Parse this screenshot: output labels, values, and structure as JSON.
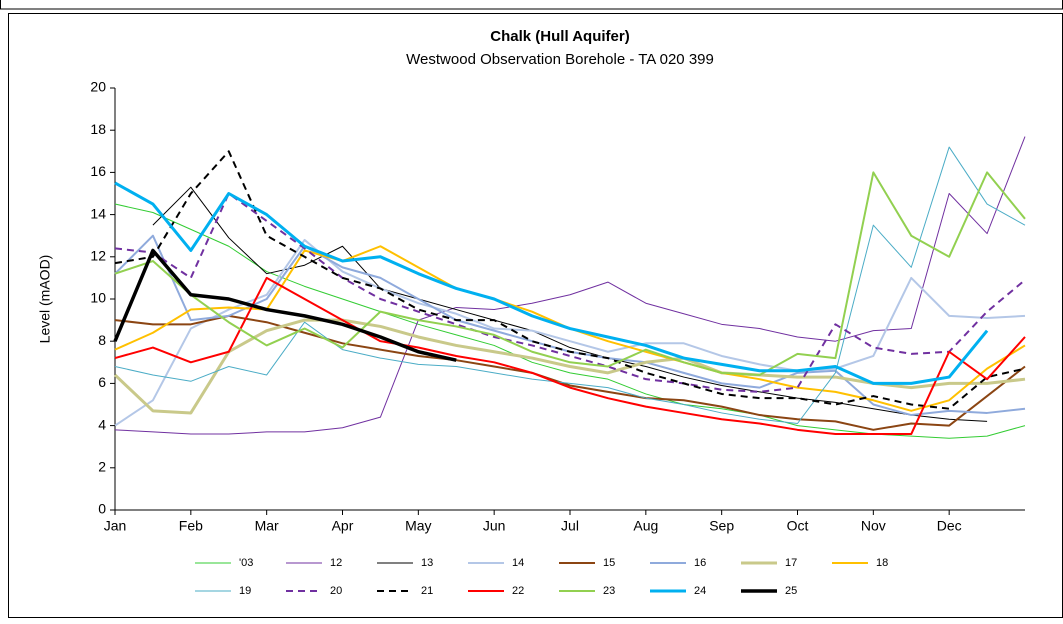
{
  "chart_data": {
    "type": "line",
    "title": "Chalk (Hull Aquifer)",
    "subtitle": "Westwood Observation Borehole - TA 020 399",
    "y_label": "Level (mAOD)",
    "x": [
      0,
      0.5,
      1,
      1.5,
      2,
      2.5,
      3,
      3.5,
      4,
      4.5,
      5,
      5.5,
      6,
      6.5,
      7,
      7.5,
      8,
      8.5,
      9,
      9.5,
      10,
      10.5,
      11,
      11.5,
      12
    ],
    "xlim": [
      0,
      12
    ],
    "xticks": [
      {
        "value": 0,
        "label": "Jan"
      },
      {
        "value": 1,
        "label": "Feb"
      },
      {
        "value": 2,
        "label": "Mar"
      },
      {
        "value": 3,
        "label": "Apr"
      },
      {
        "value": 4,
        "label": "May"
      },
      {
        "value": 5,
        "label": "Jun"
      },
      {
        "value": 6,
        "label": "Jul"
      },
      {
        "value": 7,
        "label": "Aug"
      },
      {
        "value": 8,
        "label": "Sep"
      },
      {
        "value": 9,
        "label": "Oct"
      },
      {
        "value": 10,
        "label": "Nov"
      },
      {
        "value": 11,
        "label": "Dec"
      }
    ],
    "ylim": [
      0,
      20
    ],
    "yticks": [
      0,
      2,
      4,
      6,
      8,
      10,
      12,
      14,
      16,
      18,
      20
    ],
    "grid": false,
    "legend": "bottom",
    "series": [
      {
        "name": "'03",
        "color": "#33cc33",
        "line_width": 1,
        "dashed": false,
        "values": [
          14.5,
          14.1,
          13.3,
          12.5,
          11.3,
          10.6,
          10,
          9.4,
          8.8,
          8.3,
          7.8,
          7.0,
          6.5,
          6.2,
          5.5,
          5.0,
          4.8,
          4.5,
          4.0,
          3.8,
          3.6,
          3.5,
          3.4,
          3.5,
          4.0
        ]
      },
      {
        "name": "12",
        "color": "#7030a0",
        "line_width": 1,
        "dashed": false,
        "values": [
          3.8,
          3.7,
          3.6,
          3.6,
          3.7,
          3.7,
          3.9,
          4.4,
          9.0,
          9.6,
          9.5,
          9.8,
          10.2,
          10.8,
          9.8,
          9.3,
          8.8,
          8.6,
          8.2,
          8.0,
          8.5,
          8.6,
          15.0,
          13.1,
          17.7
        ]
      },
      {
        "name": "13",
        "color": "#000000",
        "line_width": 1,
        "dashed": false,
        "values": [
          null,
          13.5,
          15.3,
          12.9,
          11.2,
          11.6,
          12.5,
          10.5,
          10.0,
          9.5,
          9.0,
          8.5,
          7.7,
          7.2,
          6.8,
          6.3,
          5.9,
          5.6,
          5.3,
          5.1,
          4.8,
          4.5,
          4.3,
          4.2,
          null
        ]
      },
      {
        "name": "14",
        "color": "#b4c7e7",
        "line_width": 2,
        "dashed": false,
        "values": [
          4.0,
          5.2,
          8.6,
          9.5,
          10.2,
          12.8,
          11.3,
          10.5,
          9.8,
          9.3,
          8.6,
          8.5,
          8.0,
          7.5,
          7.9,
          7.9,
          7.3,
          6.9,
          6.6,
          6.7,
          7.3,
          11.0,
          9.2,
          9.1,
          9.2
        ]
      },
      {
        "name": "15",
        "color": "#8b4513",
        "line_width": 2,
        "dashed": false,
        "values": [
          9.0,
          8.8,
          8.8,
          9.2,
          8.9,
          8.4,
          7.9,
          7.6,
          7.3,
          7.1,
          6.8,
          6.5,
          5.9,
          5.6,
          5.3,
          5.2,
          4.9,
          4.5,
          4.3,
          4.2,
          3.8,
          4.1,
          4.0,
          5.4,
          6.8
        ]
      },
      {
        "name": "16",
        "color": "#8faadc",
        "line_width": 2,
        "dashed": false,
        "values": [
          11.2,
          13.0,
          9.0,
          9.2,
          10.0,
          12.5,
          11.5,
          11.0,
          10.0,
          9.0,
          8.5,
          8.0,
          7.5,
          7.2,
          7.0,
          6.5,
          6.0,
          5.8,
          6.5,
          6.6,
          5.0,
          4.5,
          4.7,
          4.6,
          4.8
        ]
      },
      {
        "name": "17",
        "color": "#c9c98a",
        "line_width": 3,
        "dashed": false,
        "values": [
          6.4,
          4.7,
          4.6,
          7.5,
          8.5,
          9.0,
          9.0,
          8.7,
          8.2,
          7.8,
          7.5,
          7.2,
          6.8,
          6.5,
          7.0,
          7.2,
          6.5,
          6.4,
          6.3,
          6.3,
          6.0,
          5.8,
          6.0,
          6.0,
          6.2
        ]
      },
      {
        "name": "18",
        "color": "#ffc000",
        "line_width": 2,
        "dashed": false,
        "values": [
          7.6,
          8.4,
          9.5,
          9.6,
          9.5,
          12.3,
          11.8,
          12.5,
          11.5,
          10.5,
          10.0,
          9.4,
          8.6,
          8.0,
          7.5,
          7.0,
          6.5,
          6.2,
          5.8,
          5.6,
          5.2,
          4.7,
          5.2,
          6.7,
          7.8
        ]
      },
      {
        "name": "19",
        "color": "#4bacc6",
        "line_width": 1,
        "dashed": false,
        "values": [
          6.8,
          6.4,
          6.1,
          6.8,
          6.4,
          8.9,
          7.6,
          7.2,
          6.9,
          6.8,
          6.5,
          6.2,
          6.0,
          5.8,
          5.3,
          5.0,
          4.6,
          4.3,
          4.1,
          6.5,
          13.5,
          11.5,
          17.2,
          14.5,
          13.5
        ]
      },
      {
        "name": "20",
        "color": "#7030a0",
        "line_width": 2,
        "dashed": true,
        "values": [
          12.4,
          12.2,
          11.0,
          15.0,
          13.7,
          12.4,
          11.0,
          10.0,
          9.4,
          8.8,
          8.2,
          7.8,
          7.3,
          6.8,
          6.2,
          6.0,
          5.7,
          5.6,
          5.8,
          8.8,
          7.7,
          7.4,
          7.5,
          9.4,
          10.9
        ]
      },
      {
        "name": "21",
        "color": "#000000",
        "line_width": 2,
        "dashed": true,
        "values": [
          11.7,
          12.0,
          15.0,
          17.0,
          13.0,
          12.0,
          11.0,
          10.5,
          9.5,
          9.0,
          9.0,
          8.0,
          7.5,
          7.2,
          6.5,
          6.0,
          5.5,
          5.3,
          5.3,
          5.0,
          5.4,
          5.0,
          4.8,
          6.3,
          6.7
        ]
      },
      {
        "name": "22",
        "color": "#ff0000",
        "line_width": 2,
        "dashed": false,
        "values": [
          7.2,
          7.7,
          7.0,
          7.5,
          11.0,
          10.0,
          9.0,
          8.0,
          7.7,
          7.3,
          7.0,
          6.5,
          5.8,
          5.3,
          4.9,
          4.6,
          4.3,
          4.1,
          3.8,
          3.6,
          3.6,
          3.6,
          7.5,
          6.2,
          8.2
        ]
      },
      {
        "name": "23",
        "color": "#92d050",
        "line_width": 2,
        "dashed": false,
        "values": [
          11.2,
          11.8,
          10.2,
          8.9,
          7.8,
          8.6,
          7.7,
          9.4,
          9.0,
          8.7,
          8.3,
          7.5,
          7.0,
          6.8,
          7.6,
          7.0,
          6.5,
          6.4,
          7.4,
          7.2,
          16.0,
          13.0,
          12.0,
          16.0,
          13.8
        ]
      },
      {
        "name": "24",
        "color": "#00b0f0",
        "line_width": 3,
        "dashed": false,
        "values": [
          15.5,
          14.5,
          12.3,
          15.0,
          14.0,
          12.5,
          11.8,
          12.0,
          11.2,
          10.5,
          10.0,
          9.2,
          8.6,
          8.2,
          7.8,
          7.2,
          6.9,
          6.6,
          6.6,
          6.8,
          6.0,
          6.0,
          6.3,
          8.5,
          null
        ]
      },
      {
        "name": "25",
        "color": "#000000",
        "line_width": 3.5,
        "dashed": false,
        "values": [
          8.0,
          12.3,
          10.2,
          10.0,
          9.5,
          9.2,
          8.8,
          8.2,
          7.5,
          7.1,
          null,
          null,
          null,
          null,
          null,
          null,
          null,
          null,
          null,
          null,
          null,
          null,
          null,
          null,
          null
        ]
      }
    ]
  }
}
